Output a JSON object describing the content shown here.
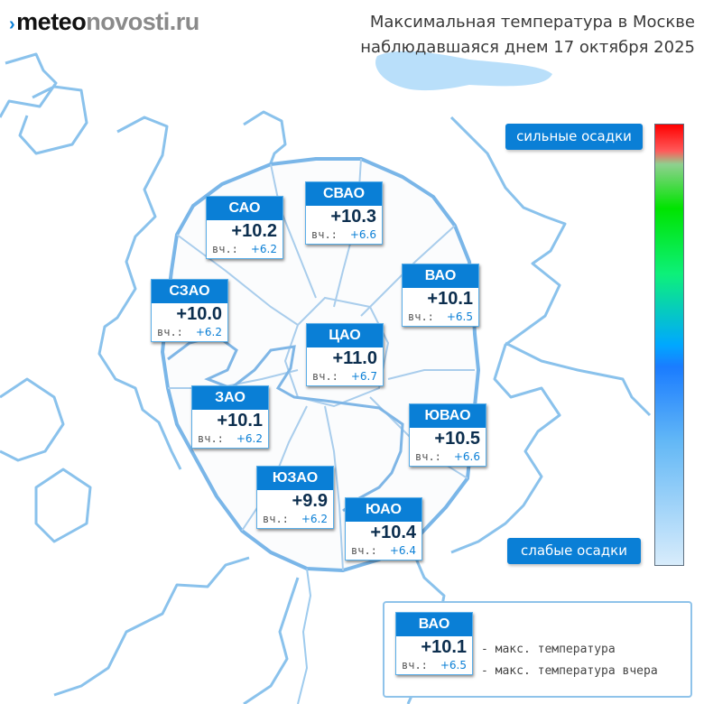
{
  "logo": {
    "mark": "›",
    "part1": "meteo",
    "part2": "novosti.ru"
  },
  "title": {
    "line1": "Максимальная температура в Москве",
    "line2": "наблюдавшаяся днем 17 октября 2025"
  },
  "districts": [
    {
      "key": "sao",
      "name": "САО",
      "max": "+10.2",
      "yesterday_label": "вч.:",
      "yesterday": "+6.2"
    },
    {
      "key": "svao",
      "name": "СВАО",
      "max": "+10.3",
      "yesterday_label": "вч.:",
      "yesterday": "+6.6"
    },
    {
      "key": "szao",
      "name": "СЗАО",
      "max": "+10.0",
      "yesterday_label": "вч.:",
      "yesterday": "+6.2"
    },
    {
      "key": "vao",
      "name": "ВАО",
      "max": "+10.1",
      "yesterday_label": "вч.:",
      "yesterday": "+6.5"
    },
    {
      "key": "cao",
      "name": "ЦАО",
      "max": "+11.0",
      "yesterday_label": "вч.:",
      "yesterday": "+6.7"
    },
    {
      "key": "zao",
      "name": "ЗАО",
      "max": "+10.1",
      "yesterday_label": "вч.:",
      "yesterday": "+6.2"
    },
    {
      "key": "yuvao",
      "name": "ЮВАО",
      "max": "+10.5",
      "yesterday_label": "вч.:",
      "yesterday": "+6.6"
    },
    {
      "key": "yuzao",
      "name": "ЮЗАО",
      "max": "+9.9",
      "yesterday_label": "вч.:",
      "yesterday": "+6.2"
    },
    {
      "key": "yuao",
      "name": "ЮАО",
      "max": "+10.4",
      "yesterday_label": "вч.:",
      "yesterday": "+6.4"
    }
  ],
  "precip_scale": {
    "top_label": "сильные осадки",
    "bottom_label": "слабые осадки"
  },
  "legend": {
    "sample": {
      "name": "ВАО",
      "max": "+10.1",
      "yesterday_label": "вч.:",
      "yesterday": "+6.5"
    },
    "max_desc": "- макс. температура",
    "yesterday_desc": "- макс. температура вчера"
  },
  "colors": {
    "accent": "#0a7fd6",
    "boundary": "#6eaee6",
    "text_dark": "#0c2e4e"
  }
}
